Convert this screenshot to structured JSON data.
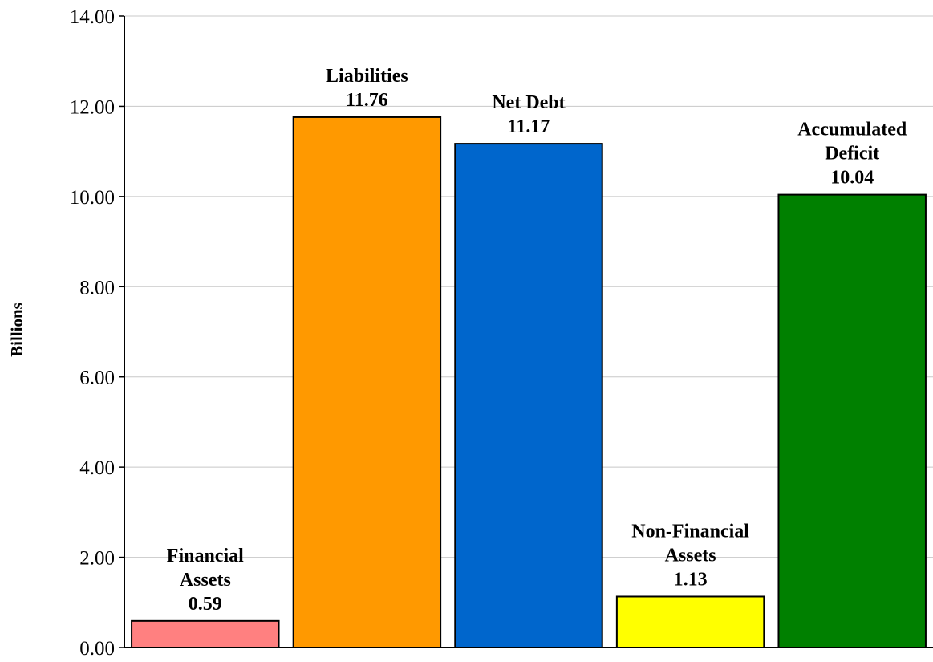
{
  "chart_data": {
    "type": "bar",
    "title": "",
    "xlabel": "",
    "ylabel": "Billions",
    "ylim": [
      0,
      14
    ],
    "yticks": [
      "0.00",
      "2.00",
      "4.00",
      "6.00",
      "8.00",
      "10.00",
      "12.00",
      "14.00"
    ],
    "grid": true,
    "legend": "none",
    "categories": [
      [
        "Financial",
        "Assets"
      ],
      [
        "Liabilities"
      ],
      [
        "Net Debt"
      ],
      [
        "Non-Financial",
        "Assets"
      ],
      [
        "Accumulated",
        "Deficit"
      ]
    ],
    "values": [
      0.59,
      11.76,
      11.17,
      1.13,
      10.04
    ],
    "value_labels": [
      "0.59",
      "11.76",
      "11.17",
      "1.13",
      "10.04"
    ],
    "colors": [
      "#ff8080",
      "#ff9900",
      "#0066cc",
      "#ffff00",
      "#008000"
    ]
  }
}
